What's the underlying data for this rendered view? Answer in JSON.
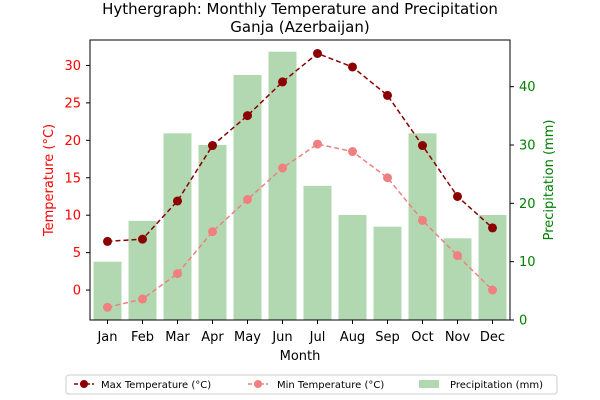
{
  "chart_data": {
    "type": "bar+line",
    "title": "Hythergraph: Monthly Temperature and Precipitation",
    "subtitle": "Ganja (Azerbaijan)",
    "xlabel": "Month",
    "ylabel_left": "Temperature (°C)",
    "ylabel_right": "Precipitation (mm)",
    "categories": [
      "Jan",
      "Feb",
      "Mar",
      "Apr",
      "May",
      "Jun",
      "Jul",
      "Aug",
      "Sep",
      "Oct",
      "Nov",
      "Dec"
    ],
    "ylim_left": [
      -4.0,
      33.4
    ],
    "ylim_right": [
      0,
      48
    ],
    "yticks_left": [
      0,
      5,
      10,
      15,
      20,
      25,
      30
    ],
    "yticks_right": [
      0,
      10,
      20,
      30,
      40
    ],
    "series": [
      {
        "name": "Max Temperature (°C)",
        "kind": "line",
        "axis": "left",
        "color": "#8b0000",
        "values": [
          6.5,
          6.8,
          11.9,
          19.3,
          23.3,
          27.8,
          31.6,
          29.8,
          26.0,
          19.3,
          12.5,
          8.3
        ]
      },
      {
        "name": "Min Temperature (°C)",
        "kind": "line",
        "axis": "left",
        "color": "#f08080",
        "values": [
          -2.3,
          -1.2,
          2.2,
          7.8,
          12.1,
          16.3,
          19.5,
          18.5,
          15.0,
          9.3,
          4.6,
          0.0
        ]
      },
      {
        "name": "Precipitation (mm)",
        "kind": "bar",
        "axis": "right",
        "color": "#b2d8b2",
        "values": [
          10,
          17,
          32,
          30,
          42,
          46,
          23,
          18,
          16,
          32,
          14,
          18
        ]
      }
    ],
    "colors": {
      "left_axis": "#ff0000",
      "right_axis": "#008000"
    },
    "grid": false,
    "legend_position": "bottom"
  }
}
